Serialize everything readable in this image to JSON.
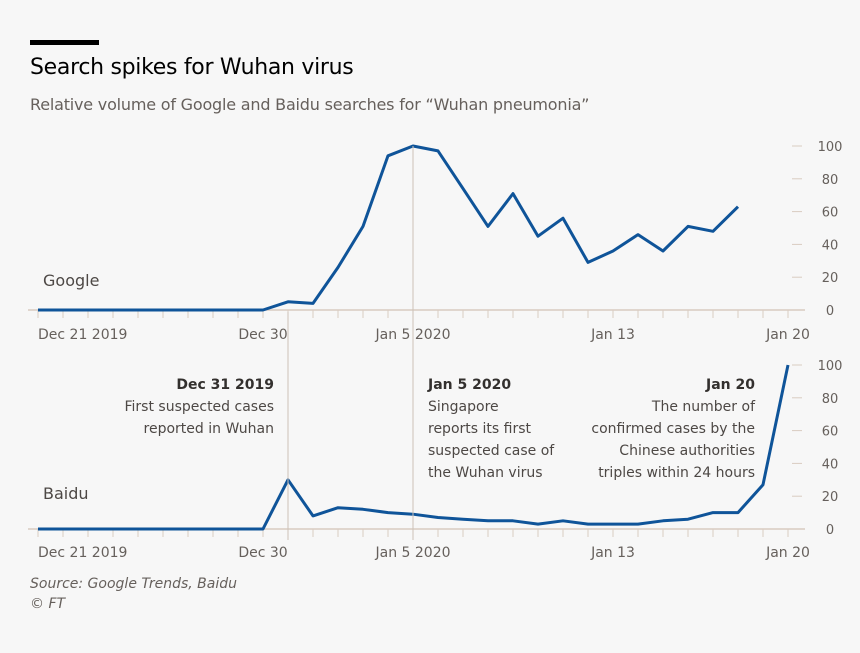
{
  "header": {
    "title": "Search spikes for Wuhan virus",
    "subtitle": "Relative volume of Google and Baidu searches for “Wuhan pneumonia”"
  },
  "footer": {
    "source": "Source: Google Trends, Baidu",
    "copyright": "© FT"
  },
  "colors": {
    "line": "#0f5499",
    "axis": "#d9ccc1",
    "refline": "#ccc1b7"
  },
  "chart_data": [
    {
      "type": "line",
      "title": "Google",
      "x": [
        "Dec 21",
        "Dec 22",
        "Dec 23",
        "Dec 24",
        "Dec 25",
        "Dec 26",
        "Dec 27",
        "Dec 28",
        "Dec 29",
        "Dec 30",
        "Dec 31",
        "Jan 1",
        "Jan 2",
        "Jan 3",
        "Jan 4",
        "Jan 5",
        "Jan 6",
        "Jan 7",
        "Jan 8",
        "Jan 9",
        "Jan 10",
        "Jan 11",
        "Jan 12",
        "Jan 13",
        "Jan 14",
        "Jan 15",
        "Jan 16",
        "Jan 17",
        "Jan 18"
      ],
      "values": [
        0,
        0,
        0,
        0,
        0,
        0,
        0,
        0,
        0,
        0,
        5,
        4,
        26,
        51,
        94,
        100,
        97,
        74,
        51,
        71,
        45,
        56,
        29,
        36,
        46,
        36,
        51,
        48,
        63
      ],
      "xtick_labels": [
        {
          "day": 0,
          "label": "Dec 21 2019"
        },
        {
          "day": 9,
          "label": "Dec 30"
        },
        {
          "day": 15,
          "label": "Jan 5 2020"
        },
        {
          "day": 23,
          "label": "Jan 13"
        },
        {
          "day": 30,
          "label": "Jan 20"
        }
      ],
      "yticks": [
        0,
        20,
        40,
        60,
        80,
        100
      ],
      "ylim": [
        0,
        100
      ],
      "ylabel": "",
      "xlabel": ""
    },
    {
      "type": "line",
      "title": "Baidu",
      "x": [
        "Dec 21",
        "Dec 22",
        "Dec 23",
        "Dec 24",
        "Dec 25",
        "Dec 26",
        "Dec 27",
        "Dec 28",
        "Dec 29",
        "Dec 30",
        "Dec 31",
        "Jan 1",
        "Jan 2",
        "Jan 3",
        "Jan 4",
        "Jan 5",
        "Jan 6",
        "Jan 7",
        "Jan 8",
        "Jan 9",
        "Jan 10",
        "Jan 11",
        "Jan 12",
        "Jan 13",
        "Jan 14",
        "Jan 15",
        "Jan 16",
        "Jan 17",
        "Jan 18",
        "Jan 19",
        "Jan 20"
      ],
      "values": [
        0,
        0,
        0,
        0,
        0,
        0,
        0,
        0,
        0,
        0,
        30,
        8,
        13,
        12,
        10,
        9,
        7,
        6,
        5,
        5,
        3,
        5,
        3,
        3,
        3,
        5,
        6,
        10,
        10,
        27,
        100
      ],
      "xtick_labels": [
        {
          "day": 0,
          "label": "Dec 21 2019"
        },
        {
          "day": 9,
          "label": "Dec 30"
        },
        {
          "day": 15,
          "label": "Jan 5 2020"
        },
        {
          "day": 23,
          "label": "Jan 13"
        },
        {
          "day": 30,
          "label": "Jan 20"
        }
      ],
      "yticks": [
        0,
        20,
        40,
        60,
        80,
        100
      ],
      "ylim": [
        0,
        100
      ],
      "ylabel": "",
      "xlabel": ""
    }
  ],
  "annotations": [
    {
      "day": 10,
      "align": "end",
      "x": 274,
      "heading": "Dec 31 2019",
      "lines": [
        "First suspected cases",
        "reported in Wuhan"
      ]
    },
    {
      "day": 15,
      "align": "start",
      "x": 428,
      "heading": "Jan 5 2020",
      "lines": [
        "Singapore",
        "reports its first",
        "suspected case of",
        "the Wuhan virus"
      ]
    },
    {
      "day": 30,
      "align": "end",
      "x": 755,
      "heading": "Jan 20",
      "lines": [
        "The number of",
        "confirmed cases by the",
        "Chinese authorities",
        "triples within 24 hours"
      ]
    }
  ]
}
